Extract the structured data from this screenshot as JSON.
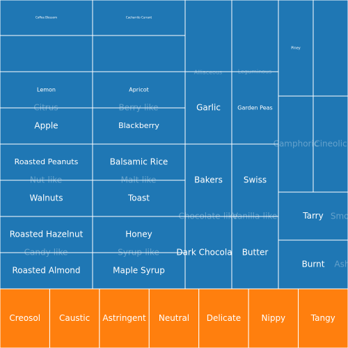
{
  "chart_data": {
    "type": "treemap",
    "colors": {
      "blue": "#1f77b4",
      "orange": "#ff7f0e",
      "border": "#ffffff"
    },
    "groups": [
      {
        "name": "Citrus",
        "items": [
          "Coffee Blossom",
          "Lemon"
        ]
      },
      {
        "name": "Berry-like",
        "items": [
          "Cacharrito Currant",
          "Apricot"
        ]
      },
      {
        "name": "Nut-like",
        "items": [
          "Apple",
          "Roasted Peanuts"
        ]
      },
      {
        "name": "Malt-like",
        "items": [
          "Blackberry",
          "Balsamic Rice"
        ]
      },
      {
        "name": "Candy-like",
        "items": [
          "Walnuts",
          "Roasted Hazelnut"
        ]
      },
      {
        "name": "Syrup-like",
        "items": [
          "Toast",
          "Honey"
        ]
      },
      {
        "name": "Alliaceous",
        "items": [
          "Garlic"
        ]
      },
      {
        "name": "Leguminous",
        "items": [
          "Garden Peas"
        ]
      },
      {
        "name": "Chocolate-like",
        "items": [
          "Bakers",
          "Dark Chocolate"
        ]
      },
      {
        "name": "Vanilla-like",
        "items": [
          "Swiss",
          "Butter"
        ]
      },
      {
        "name": "Camphoric",
        "items": [
          "Piney"
        ]
      },
      {
        "name": "Cineolic",
        "items": []
      },
      {
        "name": "Smoky",
        "items": [
          "Tarry"
        ]
      },
      {
        "name": "Ashy",
        "items": [
          "Burnt"
        ]
      }
    ],
    "extra_leaves": [
      "Roasted Almond",
      "Maple Syrup"
    ],
    "bottom_row": [
      "Creosol",
      "Caustic",
      "Astringent",
      "Neutral",
      "Delicate",
      "Nippy",
      "Tangy"
    ]
  }
}
